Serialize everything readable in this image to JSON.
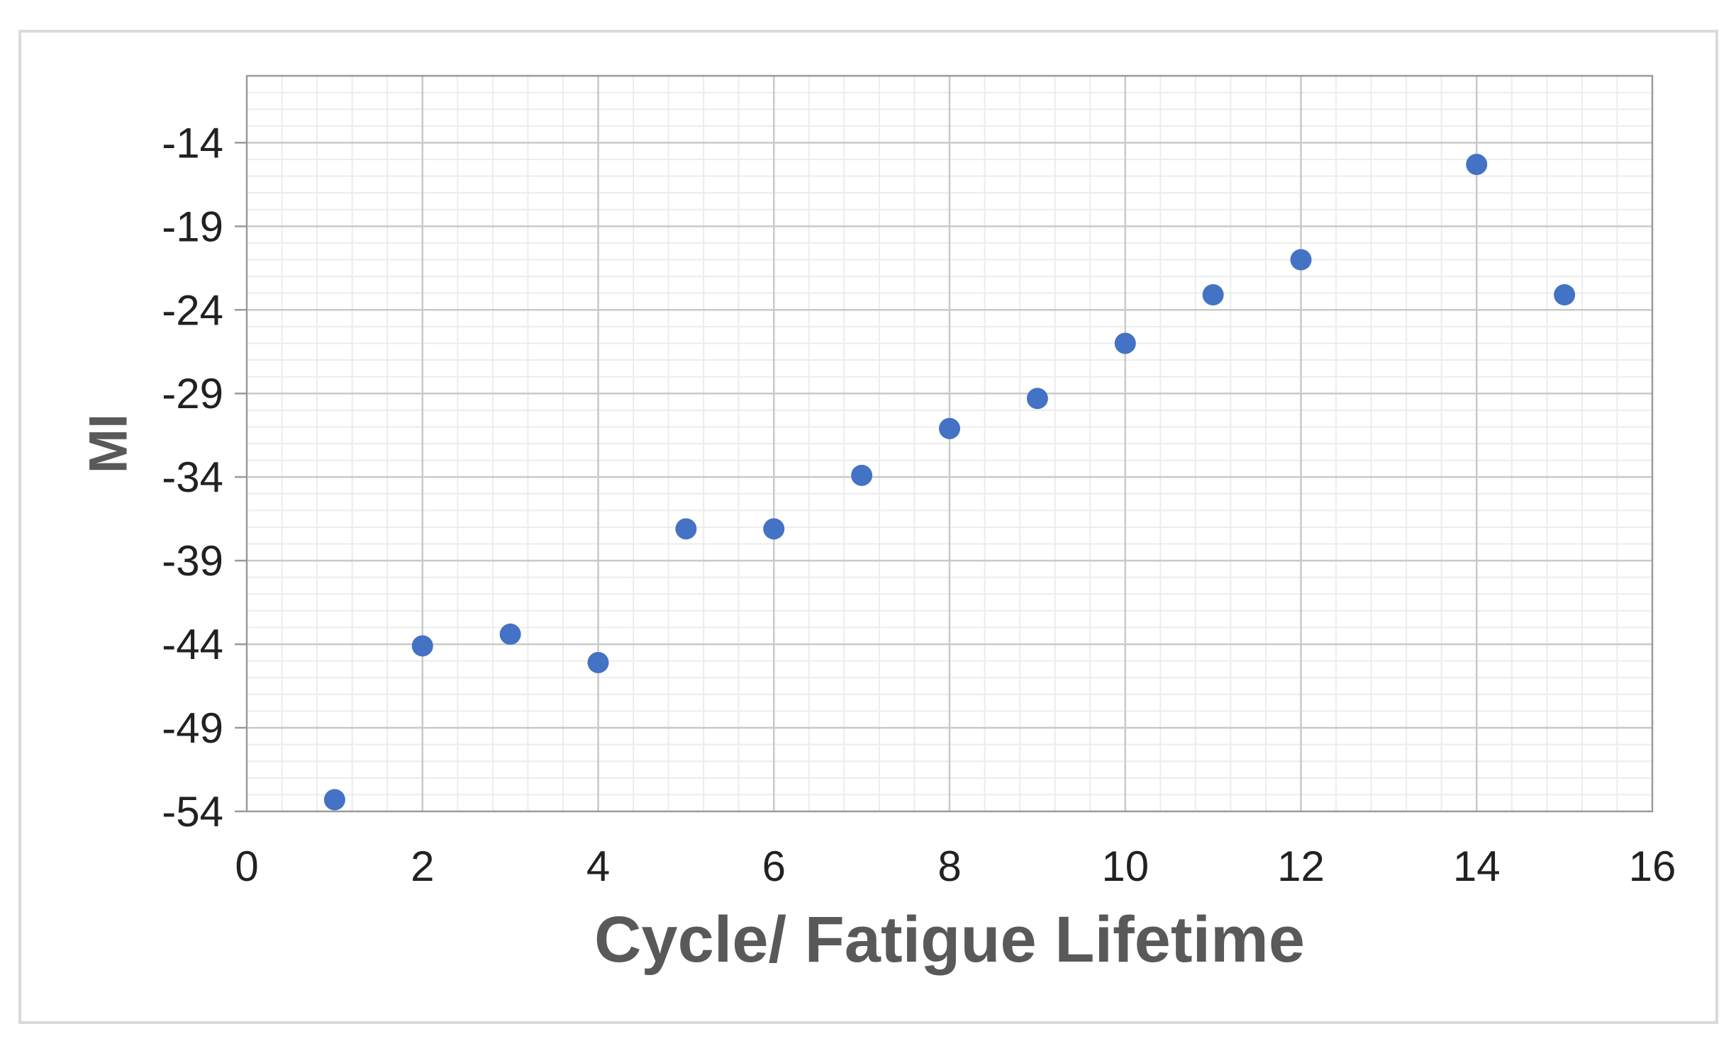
{
  "figure": {
    "background": "#ffffff",
    "border_color": "#dadada"
  },
  "colors": {
    "marker": "#4472C4",
    "grid_major": "#c9c9c9",
    "grid_minor": "#ececec",
    "axis_line": "#9a9a9a",
    "tick_text": "#212121",
    "title_text": "#595959"
  },
  "chart_data": {
    "type": "scatter",
    "title": "",
    "xlabel": "Cycle/ Fatigue Lifetime",
    "ylabel": "MI",
    "xlim": [
      0,
      16
    ],
    "ylim": [
      -54,
      -10
    ],
    "xticks": [
      0,
      2,
      4,
      6,
      8,
      10,
      12,
      14,
      16
    ],
    "yticks": [
      -14,
      -19,
      -24,
      -29,
      -34,
      -39,
      -44,
      -49,
      -54
    ],
    "x_minor_unit": 0.4,
    "y_minor_unit": 1,
    "grid": "major and minor, both axes",
    "legend_position": "none",
    "series": [
      {
        "name": "MI",
        "marker": "circle",
        "color": "#4472C4",
        "points": [
          [
            1,
            -53.3
          ],
          [
            2,
            -44.1
          ],
          [
            3,
            -43.4
          ],
          [
            4,
            -45.1
          ],
          [
            5,
            -37.1
          ],
          [
            6,
            -37.1
          ],
          [
            7,
            -33.9
          ],
          [
            8,
            -31.1
          ],
          [
            9,
            -29.3
          ],
          [
            10,
            -26.0
          ],
          [
            11,
            -23.1
          ],
          [
            12,
            -21.0
          ],
          [
            14,
            -15.3
          ],
          [
            15,
            -23.1
          ]
        ]
      }
    ]
  }
}
